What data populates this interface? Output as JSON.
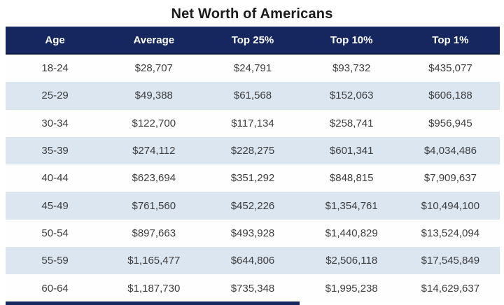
{
  "title": "Net Worth of Americans",
  "chart_data": {
    "type": "table",
    "title": "Net Worth of Americans",
    "columns": [
      "Age",
      "Average",
      "Top 25%",
      "Top 10%",
      "Top 1%"
    ],
    "rows": [
      [
        "18-24",
        "$28,707",
        "$24,791",
        "$93,732",
        "$435,077"
      ],
      [
        "25-29",
        "$49,388",
        "$61,568",
        "$152,063",
        "$606,188"
      ],
      [
        "30-34",
        "$122,700",
        "$117,134",
        "$258,741",
        "$956,945"
      ],
      [
        "35-39",
        "$274,112",
        "$228,275",
        "$601,341",
        "$4,034,486"
      ],
      [
        "40-44",
        "$623,694",
        "$351,292",
        "$848,815",
        "$7,909,637"
      ],
      [
        "45-49",
        "$761,560",
        "$452,226",
        "$1,354,761",
        "$10,494,100"
      ],
      [
        "50-54",
        "$897,663",
        "$493,928",
        "$1,440,829",
        "$13,524,094"
      ],
      [
        "55-59",
        "$1,165,477",
        "$644,806",
        "$2,506,118",
        "$17,545,849"
      ],
      [
        "60-64",
        "$1,187,730",
        "$735,348",
        "$1,995,238",
        "$14,629,637"
      ]
    ]
  },
  "colors": {
    "header_bg": "#16265e",
    "header_text": "#ffffff",
    "row_bg": "#fefefe",
    "row_alt_bg": "#dce6f1",
    "body_text": "#3d3d3d",
    "title_text": "#1b1b1b"
  }
}
